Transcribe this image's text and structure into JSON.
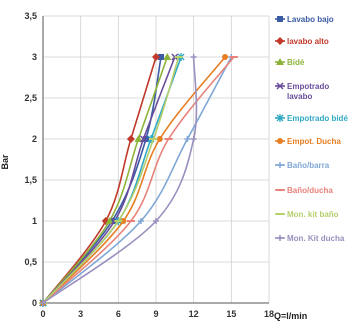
{
  "chart_data": {
    "type": "line",
    "xlabel": "Q=l/min",
    "ylabel": "Bar",
    "xlim": [
      0,
      18
    ],
    "ylim": [
      0,
      3.5
    ],
    "x_ticks": [
      0,
      3,
      6,
      9,
      12,
      15,
      18
    ],
    "x_tick_labels": [
      "0",
      "3",
      "6",
      "9",
      "12",
      "15",
      "18"
    ],
    "y_ticks": [
      0,
      0.5,
      1,
      1.5,
      2,
      2.5,
      3,
      3.5
    ],
    "y_tick_labels": [
      "0",
      "0,5",
      "1",
      "1,5",
      "2",
      "2,5",
      "3",
      "3,5"
    ],
    "grid": true,
    "legend_position": "right",
    "series": [
      {
        "name": "Lavabo bajo",
        "color": "#3b5ba5",
        "marker": "square",
        "points": [
          [
            0,
            0
          ],
          [
            5.5,
            1
          ],
          [
            8.2,
            2
          ],
          [
            9.4,
            3
          ]
        ]
      },
      {
        "name": "lavabo alto",
        "color": "#c0392b",
        "marker": "diamond",
        "points": [
          [
            0,
            0
          ],
          [
            5.0,
            1
          ],
          [
            7.0,
            2
          ],
          [
            9.0,
            3
          ]
        ]
      },
      {
        "name": "Bidé",
        "color": "#8db33a",
        "marker": "triangle",
        "points": [
          [
            0,
            0
          ],
          [
            5.3,
            1
          ],
          [
            7.6,
            2
          ],
          [
            9.9,
            3
          ]
        ]
      },
      {
        "name": "Empotrado lavabo",
        "color": "#6a4c9c",
        "marker": "x",
        "points": [
          [
            0,
            0
          ],
          [
            5.7,
            1
          ],
          [
            8.0,
            2
          ],
          [
            10.5,
            3
          ]
        ]
      },
      {
        "name": "Empotrado bidé",
        "color": "#2fa9c4",
        "marker": "star",
        "points": [
          [
            0,
            0
          ],
          [
            6.0,
            1
          ],
          [
            8.6,
            2
          ],
          [
            11.0,
            3
          ]
        ]
      },
      {
        "name": "Empot. Ducha",
        "color": "#e67e22",
        "marker": "circle",
        "points": [
          [
            0,
            0
          ],
          [
            6.4,
            1
          ],
          [
            9.3,
            2
          ],
          [
            14.5,
            3
          ]
        ]
      },
      {
        "name": "Baño/barra",
        "color": "#7fa7d6",
        "marker": "plus",
        "points": [
          [
            0,
            0
          ],
          [
            7.8,
            1
          ],
          [
            11.5,
            2
          ],
          [
            15.0,
            3
          ]
        ]
      },
      {
        "name": "Baño/ducha",
        "color": "#e8827a",
        "marker": "dash",
        "points": [
          [
            0,
            0
          ],
          [
            7.0,
            1
          ],
          [
            10.0,
            2
          ],
          [
            15.2,
            3
          ]
        ]
      },
      {
        "name": "Mon. kit baño",
        "color": "#b5cf6b",
        "marker": "dash",
        "points": [
          [
            0,
            0
          ],
          [
            6.0,
            1
          ],
          [
            8.8,
            2
          ],
          [
            10.8,
            3
          ]
        ]
      },
      {
        "name": "Mon. Kit ducha",
        "color": "#9a8fbf",
        "marker": "plus",
        "points": [
          [
            0,
            0
          ],
          [
            9.0,
            1
          ],
          [
            12.0,
            2
          ],
          [
            12.0,
            3
          ]
        ]
      }
    ]
  }
}
